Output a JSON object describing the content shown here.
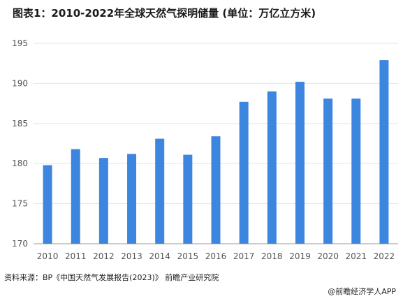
{
  "title": "图表1：2010-2022年全球天然气探明储量 (单位：万亿立方米)",
  "source": "资料来源：BP《中国天然气发展报告(2023)》 前瞻产业研究院",
  "credit": "@前瞻经济学人APP",
  "colors": {
    "bar": "#3d86e0",
    "grid": "#e6e6e6",
    "axis": "#999999"
  },
  "chart_data": {
    "type": "bar",
    "title": "图表1：2010-2022年全球天然气探明储量 (单位：万亿立方米)",
    "categories": [
      "2010",
      "2011",
      "2012",
      "2013",
      "2014",
      "2015",
      "2016",
      "2017",
      "2018",
      "2019",
      "2020",
      "2021",
      "2022"
    ],
    "values": [
      179.8,
      181.8,
      180.7,
      181.2,
      183.1,
      181.1,
      183.4,
      187.7,
      189.0,
      190.2,
      188.1,
      188.1,
      192.9
    ],
    "ylim": [
      170,
      195
    ],
    "yticks": [
      170,
      175,
      180,
      185,
      190,
      195
    ],
    "grid": true,
    "legend": "none"
  }
}
